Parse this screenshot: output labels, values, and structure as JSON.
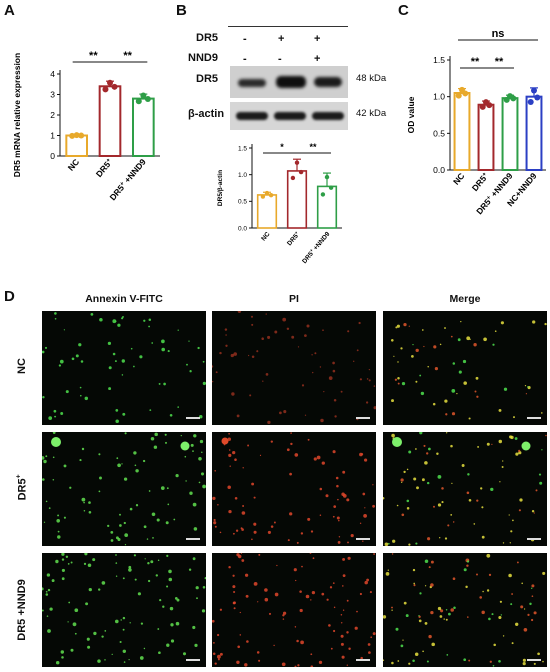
{
  "panels": {
    "A": {
      "label": "A",
      "chart_data": {
        "type": "bar",
        "categories": [
          "NC",
          "DR5+",
          "DR5+ +NND9"
        ],
        "values": [
          1.0,
          3.4,
          2.8
        ],
        "errors": [
          0.03,
          0.25,
          0.22
        ],
        "ylabel": "DR5 mRNA relative expression",
        "ylim": [
          0,
          4
        ],
        "yticks": [
          "0",
          "1",
          "2",
          "3",
          "4"
        ],
        "colors": [
          "#E8A92B",
          "#A3282C",
          "#2E9E47"
        ],
        "significance": [
          {
            "from": 0,
            "to": 1,
            "label": "**"
          },
          {
            "from": 1,
            "to": 2,
            "label": "**"
          }
        ],
        "cat_labels": [
          "NC",
          "DR5",
          "DR5 +NND9"
        ]
      }
    },
    "B": {
      "label": "B",
      "row_dr5": "DR5",
      "row_nnd9": "NND9",
      "dr5_signs": [
        "-",
        "+",
        "+"
      ],
      "nnd9_signs": [
        "-",
        "-",
        "+"
      ],
      "band1": "DR5",
      "band2": "β-actin",
      "kda1": "48 kDa",
      "kda2": "42 kDa",
      "chart_data": {
        "type": "bar",
        "categories": [
          "NC",
          "DR5+",
          "DR5+ +NND9"
        ],
        "values": [
          0.62,
          1.07,
          0.78
        ],
        "errors": [
          0.05,
          0.22,
          0.25
        ],
        "ylabel": "DR5/β-actin",
        "ylim": [
          0,
          1.5
        ],
        "yticks": [
          "0.0",
          "0.5",
          "1.0",
          "1.5"
        ],
        "colors": [
          "#E8A92B",
          "#A3282C",
          "#2E9E47"
        ],
        "significance": [
          {
            "from": 0,
            "to": 1,
            "label": "*"
          },
          {
            "from": 1,
            "to": 2,
            "label": "**"
          }
        ],
        "cat_labels": [
          "NC",
          "DR5",
          "DR5 +NND9"
        ]
      }
    },
    "C": {
      "label": "C",
      "chart_data": {
        "type": "bar",
        "categories": [
          "NC",
          "DR5+",
          "DR5+ +NND9",
          "NC+NND9"
        ],
        "values": [
          1.05,
          0.89,
          0.98,
          1.0
        ],
        "errors": [
          0.06,
          0.05,
          0.04,
          0.12
        ],
        "ylabel": "OD value",
        "ylim": [
          0,
          1.5
        ],
        "yticks": [
          "0.0",
          "0.5",
          "1.0",
          "1.5"
        ],
        "colors": [
          "#E8A92B",
          "#A3282C",
          "#2E9E47",
          "#2B3FC4"
        ],
        "significance": [
          {
            "from": 0,
            "to": 3,
            "label": "ns"
          },
          {
            "from": 0,
            "to": 1,
            "label": "**"
          },
          {
            "from": 1,
            "to": 2,
            "label": "**"
          }
        ],
        "cat_labels": [
          "NC",
          "DR5",
          "DR5 +NND9",
          "NC+NND9"
        ]
      }
    },
    "D": {
      "label": "D",
      "columns": [
        "Annexin V-FITC",
        "PI",
        "Merge"
      ],
      "rows": [
        "NC",
        "DR5",
        "DR5 +NND9"
      ]
    }
  }
}
